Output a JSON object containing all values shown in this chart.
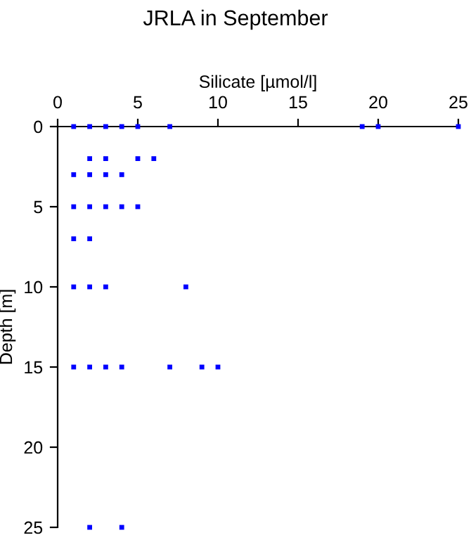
{
  "chart_data": {
    "type": "scatter",
    "title": "JRLA in September",
    "xlabel": "Silicate [µmol/l]",
    "ylabel": "Depth [m]",
    "x": [
      1,
      2,
      3,
      4,
      5,
      7,
      19,
      20,
      25,
      2,
      3,
      5,
      6,
      1,
      2,
      3,
      4,
      1,
      2,
      3,
      4,
      5,
      1,
      2,
      1,
      2,
      3,
      8,
      1,
      2,
      3,
      4,
      7,
      9,
      10,
      2,
      4
    ],
    "values": [
      0,
      0,
      0,
      0,
      0,
      0,
      0,
      0,
      0,
      2,
      2,
      2,
      2,
      3,
      3,
      3,
      3,
      5,
      5,
      5,
      5,
      5,
      7,
      7,
      10,
      10,
      10,
      10,
      15,
      15,
      15,
      15,
      15,
      15,
      15,
      25,
      25
    ],
    "color": "#0000ff",
    "marker": "square",
    "xlim": [
      0,
      25
    ],
    "xticks": [
      0,
      5,
      10,
      15,
      20,
      25
    ],
    "ylim": [
      25,
      0
    ],
    "yticks": [
      0,
      5,
      10,
      15,
      20,
      25
    ],
    "grid": false,
    "legend": false
  }
}
